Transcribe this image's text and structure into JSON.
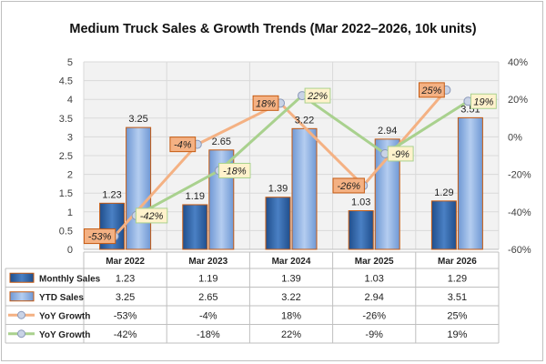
{
  "chart_data": {
    "type": "bar",
    "title": "Medium Truck Sales & Growth Trends (Mar 2022–2026, 10k units)",
    "categories": [
      "Mar 2022",
      "Mar 2023",
      "Mar 2024",
      "Mar 2025",
      "Mar 2026"
    ],
    "left_axis": {
      "ylim": [
        0,
        5
      ],
      "ticks": [
        "0",
        "0.5",
        "1",
        "1.5",
        "2",
        "2.5",
        "3",
        "3.5",
        "4",
        "4.5",
        "5"
      ]
    },
    "right_axis": {
      "ylim": [
        -60,
        40
      ],
      "ticks": [
        "-60%",
        "-40%",
        "-20%",
        "0%",
        "20%",
        "40%"
      ]
    },
    "grid": true,
    "legend": "data-table",
    "series": [
      {
        "name": "Monthly Sales",
        "kind": "bar",
        "axis": "left",
        "color": "#2f64a8",
        "values": [
          1.23,
          1.19,
          1.39,
          1.03,
          1.29
        ],
        "labels": [
          "1.23",
          "1.19",
          "1.39",
          "1.03",
          "1.29"
        ]
      },
      {
        "name": "YTD Sales",
        "kind": "bar",
        "axis": "left",
        "color": "#8fb3e3",
        "values": [
          3.25,
          2.65,
          3.22,
          2.94,
          3.51
        ],
        "labels": [
          "3.25",
          "2.65",
          "3.22",
          "2.94",
          "3.51"
        ]
      },
      {
        "name": "YoY Growth",
        "kind": "line",
        "axis": "right",
        "color": "#f4b183",
        "values": [
          -53,
          -4,
          18,
          -26,
          25
        ],
        "labels": [
          "-53%",
          "-4%",
          "18%",
          "-26%",
          "25%"
        ]
      },
      {
        "name": "YoY Growth",
        "kind": "line",
        "axis": "right",
        "color": "#a9d18e",
        "values": [
          -42,
          -18,
          22,
          -9,
          19
        ],
        "labels": [
          "-42%",
          "-18%",
          "22%",
          "-9%",
          "19%"
        ]
      }
    ]
  }
}
